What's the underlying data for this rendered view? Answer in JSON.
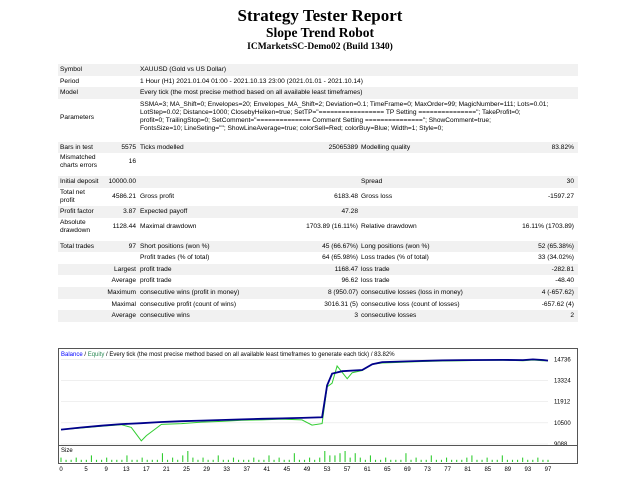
{
  "header": {
    "title": "Strategy Tester Report",
    "robot": "Slope Trend Robot",
    "account": "ICMarketsSC-Demo02 (Build 1340)"
  },
  "summary": {
    "symbol_label": "Symbol",
    "symbol_value": "XAUUSD (Gold vs US Dollar)",
    "period_label": "Period",
    "period_value": "1 Hour (H1) 2021.01.04 01:00 - 2021.10.13 23:00 (2021.01.01 - 2021.10.14)",
    "model_label": "Model",
    "model_value": "Every tick (the most precise method based on all available least timeframes)",
    "parameters_label": "Parameters",
    "parameters_lines": [
      "SSMA=3; MA_Shift=0; Envelopes=20; Envelopes_MA_Shift=2; Deviation=0.1; TimeFrame=0; MaxOrder=99; MagicNumber=111; Lots=0.01;",
      "LotStep=0.02; Distance=1000; ClosebyHeiken=true; SetTP=\"================= TP Setting ===============\"; TakeProfit=0;",
      "profit=0; TrailingStop=0; SetComment=\"============== Comment Setting ===============\"; ShowComment=true;",
      "FontsSize=10; LineSeting=\"\"; ShowLineAverage=true; colorSell=Red; colorBuy=Blue; Width=1; Style=0;"
    ],
    "bars_label": "Bars in test",
    "bars_value": "5575",
    "ticks_label": "Ticks modelled",
    "ticks_value": "25065389",
    "quality_label": "Modelling quality",
    "quality_value": "83.82%",
    "mismatch_label_1": "Mismatched",
    "mismatch_label_2": "charts errors",
    "mismatch_value": "16",
    "deposit_label": "Initial deposit",
    "deposit_value": "10000.00",
    "spread_label": "Spread",
    "spread_value": "30",
    "net_label_1": "Total net",
    "net_label_2": "profit",
    "net_value": "4586.21",
    "gross_profit_label": "Gross profit",
    "gross_profit_value": "6183.48",
    "gross_loss_label": "Gross loss",
    "gross_loss_value": "-1597.27",
    "pf_label": "Profit factor",
    "pf_value": "3.87",
    "ep_label": "Expected payoff",
    "ep_value": "47.28",
    "abs_dd_label_1": "Absolute",
    "abs_dd_label_2": "drawdown",
    "abs_dd_value": "1128.44",
    "max_dd_label": "Maximal drawdown",
    "max_dd_value": "1703.89 (16.11%)",
    "rel_dd_label": "Relative drawdown",
    "rel_dd_value": "16.11% (1703.89)",
    "total_trades_label": "Total trades",
    "total_trades_value": "97",
    "short_label": "Short positions (won %)",
    "short_value": "45 (66.67%)",
    "long_label": "Long positions (won %)",
    "long_value": "52 (65.38%)",
    "profit_trades_label": "Profit trades (% of total)",
    "profit_trades_value": "64 (65.98%)",
    "loss_trades_label": "Loss trades (% of total)",
    "loss_trades_value": "33 (34.02%)",
    "largest_label": "Largest",
    "largest_profit_label": "profit trade",
    "largest_profit_value": "1168.47",
    "largest_loss_label": "loss trade",
    "largest_loss_value": "-282.81",
    "average_label": "Average",
    "average_profit_label": "profit trade",
    "average_profit_value": "96.62",
    "average_loss_label": "loss trade",
    "average_loss_value": "-48.40",
    "maximum_label": "Maximum",
    "cons_wins_money_label": "consecutive wins (profit in money)",
    "cons_wins_money_value": "8 (950.07)",
    "cons_losses_money_label": "consecutive losses (loss in money)",
    "cons_losses_money_value": "4 (-657.62)",
    "maximal_label": "Maximal",
    "cons_profit_label": "consecutive profit (count of wins)",
    "cons_profit_value": "3016.31 (5)",
    "cons_loss_label": "consecutive loss (count of losses)",
    "cons_loss_value": "-657.62 (4)",
    "average2_label": "Average",
    "avg_cons_wins_label": "consecutive wins",
    "avg_cons_wins_value": "3",
    "avg_cons_losses_label": "consecutive losses",
    "avg_cons_losses_value": "2"
  },
  "chart_data": {
    "type": "line",
    "legend_balance": "Balance",
    "legend_sep": " / ",
    "legend_equity": "Equity",
    "legend_rest": " / Every tick (the most precise method based on all available least timeframes to generate each tick) / 83.82%",
    "size_label": "Size",
    "y_ticks": [
      "14736",
      "13324",
      "11912",
      "10500",
      "9088"
    ],
    "y_tick_values": [
      14736,
      13324,
      11912,
      10500,
      9088
    ],
    "ylim": [
      9088,
      15300
    ],
    "x_ticks": [
      "0",
      "5",
      "9",
      "13",
      "17",
      "21",
      "25",
      "29",
      "33",
      "37",
      "41",
      "45",
      "49",
      "53",
      "57",
      "61",
      "65",
      "69",
      "73",
      "77",
      "81",
      "85",
      "89",
      "93",
      "97"
    ],
    "xlim": [
      0,
      97
    ],
    "colors": {
      "balance": "#00008b",
      "equity": "#32cd32",
      "size": "#32cd32",
      "legend_blue": "#0000ff",
      "legend_green": "#2e8b57"
    },
    "series": [
      {
        "name": "Balance",
        "x": [
          0,
          4,
          8,
          12,
          16,
          20,
          24,
          28,
          32,
          36,
          40,
          44,
          48,
          52,
          53,
          54,
          56,
          60,
          62,
          64,
          68,
          72,
          76,
          80,
          84,
          88,
          92,
          94,
          96,
          97
        ],
        "values": [
          10050,
          10190,
          10310,
          10420,
          10480,
          10560,
          10610,
          10650,
          10690,
          10730,
          10770,
          10800,
          10830,
          10870,
          13000,
          13790,
          13950,
          14030,
          14420,
          14560,
          14600,
          14640,
          14670,
          14690,
          14700,
          14705,
          14690,
          14740,
          14700,
          14660
        ]
      },
      {
        "name": "Equity",
        "x": [
          0,
          4,
          8,
          12,
          14,
          16,
          17,
          20,
          24,
          28,
          32,
          36,
          40,
          44,
          48,
          50,
          52,
          53,
          54,
          55,
          57,
          58,
          60,
          62,
          64,
          68,
          72,
          76,
          80,
          84,
          88,
          92,
          94,
          96,
          97
        ],
        "values": [
          10050,
          10160,
          10280,
          10380,
          10200,
          9300,
          9650,
          10400,
          10450,
          10550,
          10600,
          10680,
          10700,
          10750,
          10700,
          10350,
          10450,
          12900,
          13150,
          14300,
          13450,
          13850,
          14000,
          14420,
          14500,
          14550,
          14600,
          14630,
          14650,
          14680,
          14690,
          14650,
          14700,
          14650,
          14650
        ]
      }
    ],
    "size_values": [
      2,
      1,
      1,
      2,
      1,
      1,
      3,
      1,
      1,
      2,
      1,
      1,
      1,
      3,
      1,
      1,
      2,
      1,
      1,
      1,
      4,
      1,
      2,
      1,
      3,
      5,
      2,
      1,
      2,
      1,
      1,
      3,
      1,
      1,
      2,
      1,
      1,
      1,
      2,
      1,
      1,
      3,
      1,
      2,
      1,
      1,
      4,
      1,
      1,
      2,
      1,
      2,
      5,
      3,
      3,
      4,
      5,
      2,
      4,
      2,
      1,
      3,
      1,
      1,
      2,
      1,
      1,
      1,
      4,
      1,
      2,
      1,
      1,
      3,
      1,
      1,
      2,
      1,
      1,
      1,
      2,
      3,
      1,
      1,
      2,
      1,
      1,
      3,
      1,
      1,
      1,
      2,
      1,
      1,
      2,
      1,
      1
    ]
  }
}
